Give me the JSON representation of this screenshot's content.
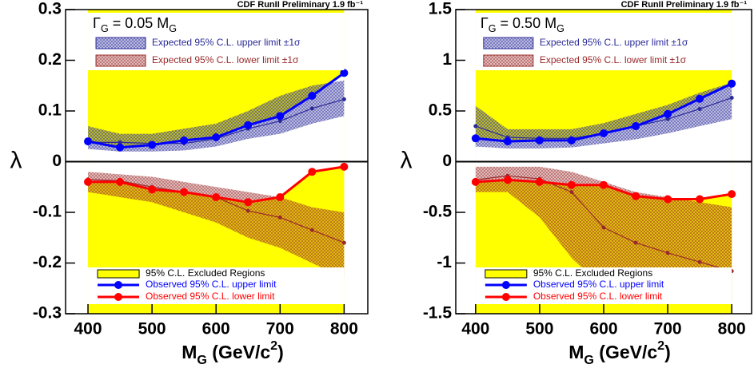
{
  "chart_data": [
    {
      "type": "line",
      "title": "CDF RunII Preliminary 1.9 fb⁻¹",
      "annotation": [
        "Γ",
        "G",
        " = 0.05 M",
        "G"
      ],
      "x_label": [
        "M",
        "G",
        " (GeV/c",
        "2",
        ")"
      ],
      "y_label": "λ",
      "x": [
        400,
        450,
        500,
        550,
        600,
        650,
        700,
        750,
        800
      ],
      "xlim": [
        365,
        837
      ],
      "xticks": [
        400,
        500,
        600,
        700,
        800
      ],
      "ylim": [
        -0.3,
        0.3
      ],
      "yticks": [
        -0.3,
        -0.2,
        -0.1,
        0,
        0.1,
        0.2,
        0.3
      ],
      "excluded": {
        "name": "95% C.L. Excluded Regions",
        "color": "#ffff00"
      },
      "bands": [
        {
          "name": "Expected 95% C.L. upper limit ±1σ",
          "color": "#2a2a9a",
          "median": [
            0.038,
            0.038,
            0.036,
            0.036,
            0.045,
            0.065,
            0.08,
            0.105,
            0.123
          ],
          "low": [
            0.025,
            0.02,
            0.02,
            0.022,
            0.03,
            0.045,
            0.055,
            0.075,
            0.09
          ],
          "high": [
            0.07,
            0.055,
            0.055,
            0.065,
            0.075,
            0.1,
            0.13,
            0.15,
            0.16
          ]
        },
        {
          "name": "Expected 95% C.L. lower limit ±1σ",
          "color": "#9a2a2a",
          "median": [
            -0.035,
            -0.038,
            -0.05,
            -0.06,
            -0.07,
            -0.097,
            -0.11,
            -0.135,
            -0.16
          ],
          "low": [
            -0.06,
            -0.07,
            -0.08,
            -0.1,
            -0.12,
            -0.15,
            -0.17,
            -0.2,
            -0.23
          ],
          "high": [
            -0.02,
            -0.025,
            -0.03,
            -0.04,
            -0.05,
            -0.06,
            -0.07,
            -0.09,
            -0.1
          ]
        }
      ],
      "series": [
        {
          "name": "Observed 95% C.L. upper limit",
          "color": "#0000ff",
          "values": [
            0.04,
            0.028,
            0.033,
            0.042,
            0.048,
            0.072,
            0.09,
            0.13,
            0.175
          ]
        },
        {
          "name": "Observed 95% C.L. lower limit",
          "color": "#ff0000",
          "values": [
            -0.04,
            -0.04,
            -0.055,
            -0.06,
            -0.07,
            -0.08,
            -0.07,
            -0.02,
            -0.01
          ]
        }
      ]
    },
    {
      "type": "line",
      "title": "CDF RunII Preliminary 1.9 fb⁻¹",
      "annotation": [
        "Γ",
        "G",
        " = 0.50 M",
        "G"
      ],
      "x_label": [
        "M",
        "G",
        " (GeV/c",
        "2",
        ")"
      ],
      "y_label": "λ",
      "x": [
        400,
        450,
        500,
        550,
        600,
        650,
        700,
        750,
        800
      ],
      "xlim": [
        369,
        831
      ],
      "xticks": [
        400,
        500,
        600,
        700,
        800
      ],
      "ylim": [
        -1.5,
        1.5
      ],
      "yticks": [
        -1.5,
        -1,
        -0.5,
        0,
        0.5,
        1,
        1.5
      ],
      "excluded": {
        "name": "95% C.L. Excluded Regions",
        "color": "#ffff00"
      },
      "bands": [
        {
          "name": "Expected 95% C.L. upper limit ±1σ",
          "color": "#2a2a9a",
          "median": [
            0.35,
            0.24,
            0.23,
            0.23,
            0.28,
            0.35,
            0.42,
            0.52,
            0.63
          ],
          "low": [
            0.15,
            0.13,
            0.13,
            0.14,
            0.18,
            0.22,
            0.28,
            0.35,
            0.42
          ],
          "high": [
            0.55,
            0.32,
            0.32,
            0.32,
            0.38,
            0.47,
            0.56,
            0.68,
            0.78
          ]
        },
        {
          "name": "Expected 95% C.L. lower limit ±1σ",
          "color": "#9a2a2a",
          "median": [
            -0.18,
            -0.14,
            -0.17,
            -0.3,
            -0.65,
            -0.8,
            -0.9,
            -0.99,
            -1.08
          ],
          "low": [
            -0.3,
            -0.3,
            -0.55,
            -0.95,
            -1.25,
            -1.35,
            -1.35,
            -1.35,
            -1.38
          ],
          "high": [
            -0.05,
            -0.05,
            -0.05,
            -0.1,
            -0.2,
            -0.3,
            -0.35,
            -0.4,
            -0.45
          ]
        }
      ],
      "series": [
        {
          "name": "Observed 95% C.L. upper limit",
          "color": "#0000ff",
          "values": [
            0.23,
            0.2,
            0.21,
            0.21,
            0.28,
            0.35,
            0.47,
            0.62,
            0.77
          ]
        },
        {
          "name": "Observed 95% C.L. lower limit",
          "color": "#ff0000",
          "values": [
            -0.2,
            -0.18,
            -0.2,
            -0.23,
            -0.23,
            -0.34,
            -0.37,
            -0.37,
            -0.32
          ]
        }
      ]
    }
  ]
}
